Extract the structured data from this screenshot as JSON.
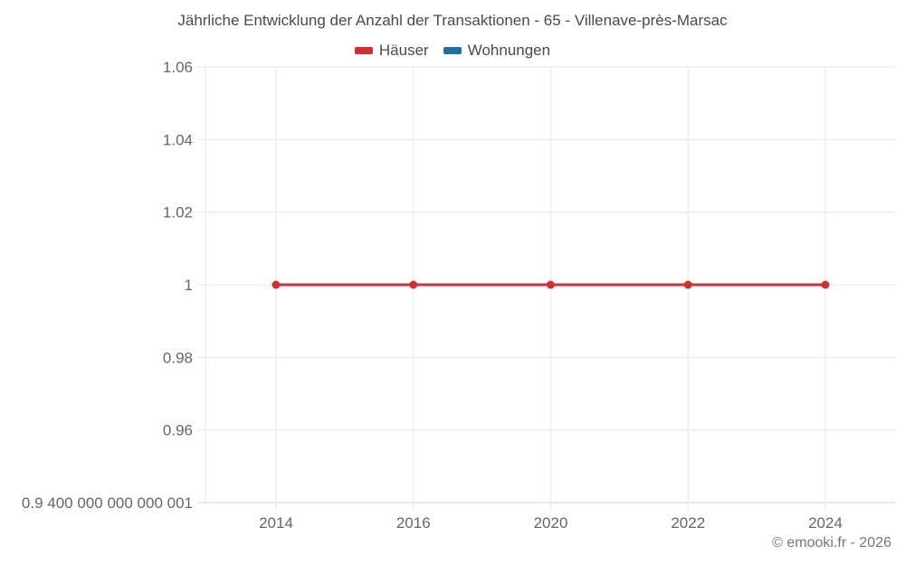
{
  "header": {
    "title": "Jährliche Entwicklung der Anzahl der Transaktionen - 65 - Villenave-près-Marsac"
  },
  "legend": {
    "items": [
      {
        "label": "Häuser",
        "color": "#d32f2e"
      },
      {
        "label": "Wohnungen",
        "color": "#1d6fa5"
      }
    ]
  },
  "footer": {
    "credit": "© emooki.fr - 2026"
  },
  "chart_data": {
    "type": "line",
    "title": "Jährliche Entwicklung der Anzahl der Transaktionen - 65 - Villenave-près-Marsac",
    "categories": [
      "2014",
      "2016",
      "2020",
      "2022",
      "2024"
    ],
    "series": [
      {
        "name": "Häuser",
        "color": "#d32f2e",
        "values": [
          1,
          1,
          1,
          1,
          1
        ]
      },
      {
        "name": "Wohnungen",
        "color": "#1d6fa5",
        "values": []
      }
    ],
    "xlabel": "",
    "ylabel": "",
    "ylim": [
      0.94,
      1.06
    ],
    "y_ticks": [
      {
        "value": 1.06,
        "label": "1.06"
      },
      {
        "value": 1.04,
        "label": "1.04"
      },
      {
        "value": 1.02,
        "label": "1.02"
      },
      {
        "value": 1,
        "label": "1"
      },
      {
        "value": 0.98,
        "label": "0.98"
      },
      {
        "value": 0.96,
        "label": "0.96"
      },
      {
        "value": 0.94,
        "label": "0.9 400 000 000 000 001"
      }
    ],
    "grid": true,
    "legend_position": "top",
    "colors": {
      "grid": "#ececec",
      "axis": "#d9d9d9",
      "tick_text": "#666666"
    }
  }
}
